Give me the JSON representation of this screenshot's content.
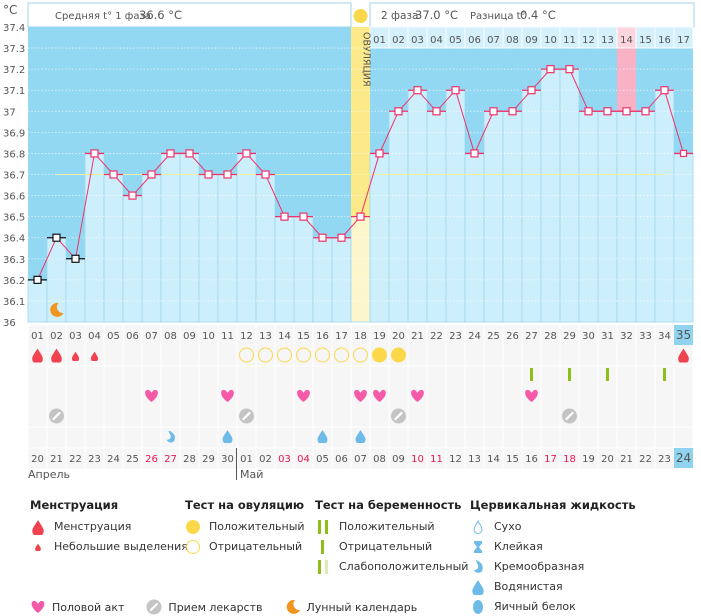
{
  "y_unit": "°C",
  "header": {
    "phase1_label": "Средняя t° 1 фаза",
    "phase1_value": "36.6 °C",
    "phase2_label": "2 фаза",
    "phase2_value": "37.0 °C",
    "diff_label": "Разница t°",
    "diff_value": "0.4 °C",
    "ovulation_label": "ОВУЛЯЦИЯ"
  },
  "colors": {
    "line": "#f0326a",
    "above": "#93d8f2",
    "below": "#cdeefb",
    "ovulation": "#fbe98a",
    "highlight": "#f7b3c5",
    "weekend": "#e8194f"
  },
  "chart_data": {
    "type": "line",
    "ylim": [
      36.0,
      37.4
    ],
    "yticks": [
      "37.4",
      "37.3",
      "37.2",
      "37.1",
      "37",
      "36.9",
      "36.8",
      "36.7",
      "36.6",
      "36.5",
      "36.4",
      "36.3",
      "36.2",
      "36.1",
      "36"
    ],
    "coverline": 36.7,
    "ovulation_day": 18,
    "highlighted_post_day": "14",
    "cycle_days": [
      "01",
      "02",
      "03",
      "04",
      "05",
      "06",
      "07",
      "08",
      "09",
      "10",
      "11",
      "12",
      "13",
      "14",
      "15",
      "16",
      "17",
      "18",
      "19",
      "20",
      "21",
      "22",
      "23",
      "24",
      "25",
      "26",
      "27",
      "28",
      "29",
      "30",
      "31",
      "32",
      "33",
      "34",
      "35"
    ],
    "temperatures": [
      36.2,
      36.4,
      36.3,
      36.8,
      36.7,
      36.6,
      36.7,
      36.8,
      36.8,
      36.7,
      36.7,
      36.8,
      36.7,
      36.5,
      36.5,
      36.4,
      36.4,
      36.5,
      36.8,
      37.0,
      37.1,
      37.0,
      37.1,
      36.8,
      37.0,
      37.0,
      37.1,
      37.2,
      37.2,
      37.0,
      37.0,
      37.0,
      37.0,
      37.1,
      36.8
    ],
    "excluded_days": [
      1,
      2,
      3
    ],
    "post_ovulation_days": [
      "01",
      "02",
      "03",
      "04",
      "05",
      "06",
      "07",
      "08",
      "09",
      "10",
      "11",
      "12",
      "13",
      "14",
      "15",
      "16",
      "17"
    ],
    "dates": [
      "20",
      "21",
      "22",
      "23",
      "24",
      "25",
      "26",
      "27",
      "28",
      "29",
      "30",
      "01",
      "02",
      "03",
      "04",
      "05",
      "06",
      "07",
      "08",
      "09",
      "10",
      "11",
      "12",
      "13",
      "14",
      "15",
      "16",
      "17",
      "18",
      "19",
      "20",
      "21",
      "22",
      "23",
      "24"
    ],
    "weekend_dates": [
      6,
      7,
      13,
      14,
      20,
      21,
      27,
      28,
      34
    ],
    "months": [
      "Апрель",
      "Май"
    ],
    "current_day": 35,
    "moon_days": [
      2
    ],
    "markers": {
      "menstruation": [
        1,
        2,
        35
      ],
      "spotting": [
        3,
        4
      ],
      "ovulation_test_negative": [
        12,
        13,
        14,
        15,
        16,
        17,
        18
      ],
      "ovulation_test_positive": [
        19,
        20
      ],
      "pregnancy_test_negative": [
        27,
        29,
        31,
        34
      ],
      "intercourse": [
        7,
        11,
        15,
        18,
        19,
        21,
        27
      ],
      "medication": [
        2,
        12,
        20,
        29
      ],
      "fluid_creamy": [
        8
      ],
      "fluid_watery": [
        11,
        16,
        18
      ]
    }
  },
  "legend": {
    "menstruation": {
      "title": "Менструация",
      "items": [
        "Менструация",
        "Небольшие выделения"
      ]
    },
    "ovulation_test": {
      "title": "Тест на овуляцию",
      "items": [
        "Положительный",
        "Отрицательный"
      ]
    },
    "pregnancy_test": {
      "title": "Тест на беременность",
      "items": [
        "Положительный",
        "Отрицательный",
        "Слабоположительный"
      ]
    },
    "cervical_fluid": {
      "title": "Цервикальная жидкость",
      "items": [
        "Сухо",
        "Клейкая",
        "Кремообразная",
        "Водянистая",
        "Яичный белок"
      ]
    },
    "other": [
      "Половой акт",
      "Прием лекарств",
      "Лунный календарь"
    ]
  }
}
